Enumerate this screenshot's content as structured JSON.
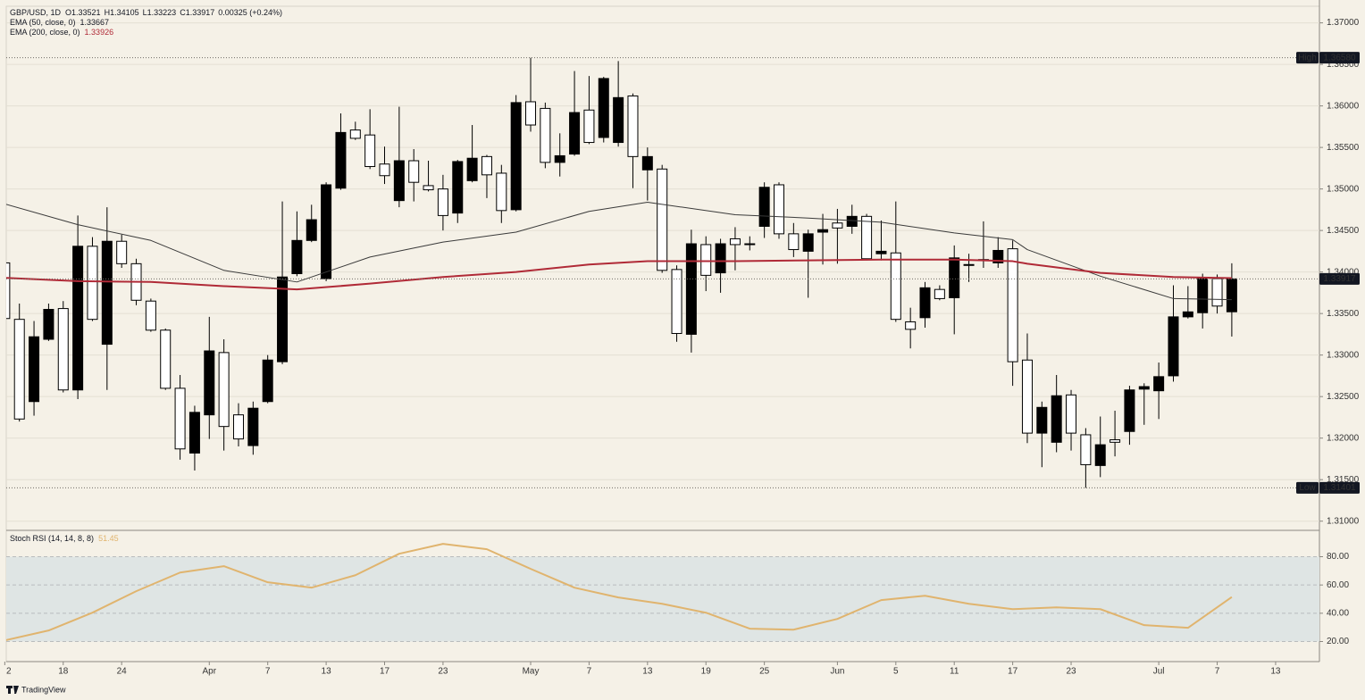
{
  "chart_data": [
    {
      "type": "candlestick",
      "header": {
        "symbol": "GBP/USD, 1D",
        "ohlc_labels": [
          "O",
          "H",
          "L",
          "C"
        ],
        "change": "0.00325 (+0.24%)"
      },
      "xlim": [
        0.1,
        90
      ],
      "ylim": [
        1.309,
        1.372
      ],
      "yticks": [
        {
          "value": 1.31,
          "label": "1.31000"
        },
        {
          "value": 1.315,
          "label": "1.31500"
        },
        {
          "value": 1.32,
          "label": "1.32000"
        },
        {
          "value": 1.325,
          "label": "1.32500"
        },
        {
          "value": 1.33,
          "label": "1.33000"
        },
        {
          "value": 1.335,
          "label": "1.33500"
        },
        {
          "value": 1.34,
          "label": "1.34000"
        },
        {
          "value": 1.345,
          "label": "1.34500"
        },
        {
          "value": 1.35,
          "label": "1.35000"
        },
        {
          "value": 1.355,
          "label": "1.35500"
        },
        {
          "value": 1.36,
          "label": "1.36000"
        },
        {
          "value": 1.365,
          "label": "1.36500"
        },
        {
          "value": 1.37,
          "label": "1.37000"
        }
      ],
      "grid": true,
      "candles": {
        "up_color": "#000000",
        "down_color": "#ffffff",
        "open": [
          1.3411,
          1.3343,
          1.3244,
          1.3319,
          1.3356,
          1.3258,
          1.3431,
          1.3313,
          1.3437,
          1.341,
          1.3365,
          1.333,
          1.326,
          1.3182,
          1.3228,
          1.3303,
          1.3228,
          1.3191,
          1.3244,
          1.3292,
          1.3398,
          1.3438,
          1.3392,
          1.3501,
          1.3571,
          1.3565,
          1.353,
          1.3486,
          1.3534,
          1.3504,
          1.35,
          1.3471,
          1.351,
          1.3539,
          1.3519,
          1.3475,
          1.3605,
          1.3597,
          1.3532,
          1.3542,
          1.3595,
          1.3562,
          1.3556,
          1.3612,
          1.3523,
          1.3524,
          1.3403,
          1.3325,
          1.3433,
          1.3399,
          1.344,
          1.3434,
          1.3455,
          1.3505,
          1.3446,
          1.3425,
          1.3448,
          1.3459,
          1.3455,
          1.3467,
          1.3422,
          1.3423,
          1.334,
          1.3345,
          1.3379,
          1.3369,
          1.3409,
          1.3414,
          1.3411,
          1.3428,
          1.3294,
          1.3206,
          1.3195,
          1.3252,
          1.3204,
          1.3167,
          1.3198,
          1.3208,
          1.3259,
          1.3257,
          1.3275,
          1.3346,
          1.3351,
          1.3392,
          1.33521
        ],
        "high": [
          1.3414,
          1.3362,
          1.3341,
          1.3362,
          1.3365,
          1.3468,
          1.3442,
          1.3478,
          1.3445,
          1.3416,
          1.3368,
          1.3332,
          1.3276,
          1.3239,
          1.3346,
          1.3319,
          1.3242,
          1.3244,
          1.33,
          1.3485,
          1.3473,
          1.3481,
          1.3508,
          1.3591,
          1.3581,
          1.3596,
          1.3551,
          1.3599,
          1.3548,
          1.3534,
          1.3517,
          1.3535,
          1.3577,
          1.3541,
          1.3529,
          1.3613,
          1.3658,
          1.3604,
          1.3567,
          1.3642,
          1.3636,
          1.3635,
          1.3654,
          1.3615,
          1.355,
          1.3529,
          1.3408,
          1.3451,
          1.3443,
          1.344,
          1.3454,
          1.3443,
          1.3508,
          1.3508,
          1.3459,
          1.3451,
          1.347,
          1.3476,
          1.3481,
          1.347,
          1.3462,
          1.3485,
          1.3357,
          1.3388,
          1.3384,
          1.3432,
          1.3422,
          1.3461,
          1.3442,
          1.3438,
          1.3326,
          1.3244,
          1.3276,
          1.3258,
          1.3212,
          1.3226,
          1.3233,
          1.3263,
          1.3266,
          1.3291,
          1.3384,
          1.3383,
          1.3398,
          1.3397,
          1.34105
        ],
        "low": [
          1.3343,
          1.322,
          1.3227,
          1.3317,
          1.3255,
          1.3247,
          1.3341,
          1.3258,
          1.3405,
          1.336,
          1.3328,
          1.3258,
          1.3174,
          1.3161,
          1.3199,
          1.3185,
          1.319,
          1.318,
          1.3242,
          1.3289,
          1.3395,
          1.3436,
          1.3389,
          1.3499,
          1.3559,
          1.3524,
          1.3506,
          1.3478,
          1.3485,
          1.3497,
          1.345,
          1.3459,
          1.3508,
          1.3489,
          1.3459,
          1.3473,
          1.3569,
          1.3525,
          1.3515,
          1.354,
          1.3554,
          1.3556,
          1.3551,
          1.3501,
          1.3486,
          1.3399,
          1.3316,
          1.3303,
          1.3377,
          1.3375,
          1.3402,
          1.3426,
          1.3441,
          1.344,
          1.3418,
          1.3369,
          1.3409,
          1.341,
          1.3446,
          1.3414,
          1.3414,
          1.334,
          1.3308,
          1.3333,
          1.3366,
          1.3325,
          1.3388,
          1.3405,
          1.3405,
          1.3263,
          1.3194,
          1.3165,
          1.3183,
          1.3185,
          1.31401,
          1.3153,
          1.3178,
          1.3192,
          1.3216,
          1.3223,
          1.3268,
          1.3344,
          1.3332,
          1.335,
          1.33223
        ],
        "close": [
          1.3344,
          1.3223,
          1.3322,
          1.3355,
          1.3258,
          1.3431,
          1.3343,
          1.3437,
          1.341,
          1.3366,
          1.333,
          1.326,
          1.3187,
          1.3231,
          1.3305,
          1.3214,
          1.3199,
          1.3236,
          1.3294,
          1.3394,
          1.3438,
          1.3463,
          1.3505,
          1.3568,
          1.3561,
          1.3527,
          1.3516,
          1.3534,
          1.3508,
          1.3499,
          1.3468,
          1.3533,
          1.3537,
          1.3517,
          1.3474,
          1.3604,
          1.3577,
          1.3532,
          1.354,
          1.3592,
          1.3556,
          1.3633,
          1.361,
          1.3539,
          1.3539,
          1.3402,
          1.3326,
          1.3434,
          1.3396,
          1.3434,
          1.3433,
          1.3434,
          1.3502,
          1.3446,
          1.3427,
          1.3446,
          1.3451,
          1.3453,
          1.3467,
          1.3416,
          1.3425,
          1.3343,
          1.3331,
          1.3381,
          1.3368,
          1.3417,
          1.3409,
          1.3415,
          1.3426,
          1.3292,
          1.3206,
          1.3237,
          1.3251,
          1.3206,
          1.3168,
          1.3192,
          1.3195,
          1.3258,
          1.3262,
          1.3274,
          1.3346,
          1.3352,
          1.3392,
          1.3359,
          1.33917
        ]
      },
      "series": [
        {
          "name": "EMA (50, close, 0)",
          "color": "#3a3a3a",
          "x": [
            0,
            5,
            10,
            15,
            20,
            25,
            30,
            35,
            40,
            44,
            50,
            55,
            60,
            65,
            69,
            70,
            75,
            80,
            84
          ],
          "values": [
            1.3482,
            1.3457,
            1.3438,
            1.3402,
            1.3388,
            1.3418,
            1.3436,
            1.3448,
            1.3473,
            1.3484,
            1.3469,
            1.3465,
            1.346,
            1.3447,
            1.3439,
            1.3427,
            1.3395,
            1.3368,
            1.33667
          ]
        },
        {
          "name": "EMA (200, close, 0)",
          "color": "#b02a37",
          "x": [
            0,
            5,
            10,
            15,
            20,
            25,
            30,
            35,
            40,
            44,
            50,
            55,
            60,
            65,
            69,
            70,
            75,
            80,
            84
          ],
          "values": [
            1.3393,
            1.3389,
            1.3388,
            1.3383,
            1.3379,
            1.3386,
            1.3394,
            1.34,
            1.3409,
            1.3413,
            1.3413,
            1.3414,
            1.3415,
            1.3415,
            1.3413,
            1.341,
            1.3399,
            1.3394,
            1.33926
          ]
        }
      ],
      "high_marker": {
        "name": "High",
        "value": 1.3658,
        "label": "1.36580"
      },
      "low_marker": {
        "name": "Low",
        "value": 1.31401,
        "label": "1.31401"
      }
    },
    {
      "type": "line",
      "xlim": [
        0.1,
        90
      ],
      "ylim": [
        5.8,
        98
      ],
      "yticks": [
        {
          "value": 20,
          "label": "20.00"
        },
        {
          "value": 40,
          "label": "40.00"
        },
        {
          "value": 60,
          "label": "60.00"
        },
        {
          "value": 80,
          "label": "80.00"
        }
      ],
      "band": [
        20,
        80
      ],
      "xticks": [
        {
          "value": 0,
          "label": "2"
        },
        {
          "value": 4,
          "label": "18"
        },
        {
          "value": 8,
          "label": "24"
        },
        {
          "value": 14,
          "label": "Apr"
        },
        {
          "value": 18,
          "label": "7"
        },
        {
          "value": 22,
          "label": "13"
        },
        {
          "value": 26,
          "label": "17"
        },
        {
          "value": 30,
          "label": "23"
        },
        {
          "value": 36,
          "label": "May"
        },
        {
          "value": 40,
          "label": "7"
        },
        {
          "value": 44,
          "label": "13"
        },
        {
          "value": 48,
          "label": "19"
        },
        {
          "value": 52,
          "label": "25"
        },
        {
          "value": 57,
          "label": "Jun"
        },
        {
          "value": 61,
          "label": "5"
        },
        {
          "value": 65,
          "label": "11"
        },
        {
          "value": 69,
          "label": "17"
        },
        {
          "value": 73,
          "label": "23"
        },
        {
          "value": 79,
          "label": "Jul"
        },
        {
          "value": 83,
          "label": "7"
        },
        {
          "value": 87,
          "label": "13"
        }
      ],
      "series": [
        {
          "name": "Stoch RSI (14, 14, 8, 8)",
          "color": "#e0b46e",
          "x": [
            0,
            3,
            6,
            9,
            12,
            15,
            18,
            21,
            24,
            27,
            30,
            33,
            36,
            39,
            42,
            45,
            48,
            51,
            54,
            57,
            60,
            63,
            66,
            69,
            72,
            75,
            78,
            81,
            84
          ],
          "values": [
            20.8,
            27.8,
            40.4,
            55.6,
            68.8,
            73.3,
            61.9,
            58.1,
            66.9,
            82.1,
            89.1,
            85.3,
            71.4,
            58.1,
            51.2,
            46.7,
            40.4,
            29.1,
            28.4,
            36.0,
            49.3,
            52.4,
            46.7,
            42.9,
            44.2,
            42.9,
            31.6,
            29.7,
            51.45
          ]
        }
      ]
    }
  ],
  "brand": "TradingView"
}
